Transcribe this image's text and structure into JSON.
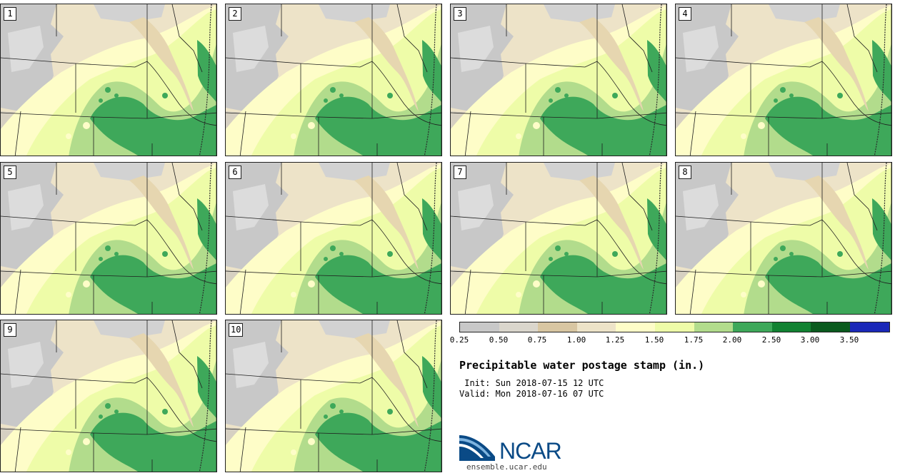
{
  "panels": [
    {
      "label": "1"
    },
    {
      "label": "2"
    },
    {
      "label": "3"
    },
    {
      "label": "4"
    },
    {
      "label": "5"
    },
    {
      "label": "6"
    },
    {
      "label": "7"
    },
    {
      "label": "8"
    },
    {
      "label": "9"
    },
    {
      "label": "10"
    }
  ],
  "colorbar": {
    "colors": [
      "#e0e0e0",
      "#c8c8c8",
      "#dad6cc",
      "#d8c6a2",
      "#ede3c8",
      "#fefdc8",
      "#eefca8",
      "#b2dc8c",
      "#3ea85a",
      "#128232",
      "#0a5a1e",
      "#1a28b8"
    ],
    "tick_labels": [
      "0.25",
      "0.50",
      "0.75",
      "1.00",
      "1.25",
      "1.50",
      "1.75",
      "2.00",
      "2.50",
      "3.00",
      "3.50"
    ]
  },
  "title": "Precipitable water postage stamp (in.)",
  "init_text": " Init: Sun 2018-07-15 12 UTC",
  "valid_text": "Valid: Mon 2018-07-16 07 UTC",
  "logo": {
    "word": "NCAR",
    "url": "ensemble.ucar.edu"
  }
}
